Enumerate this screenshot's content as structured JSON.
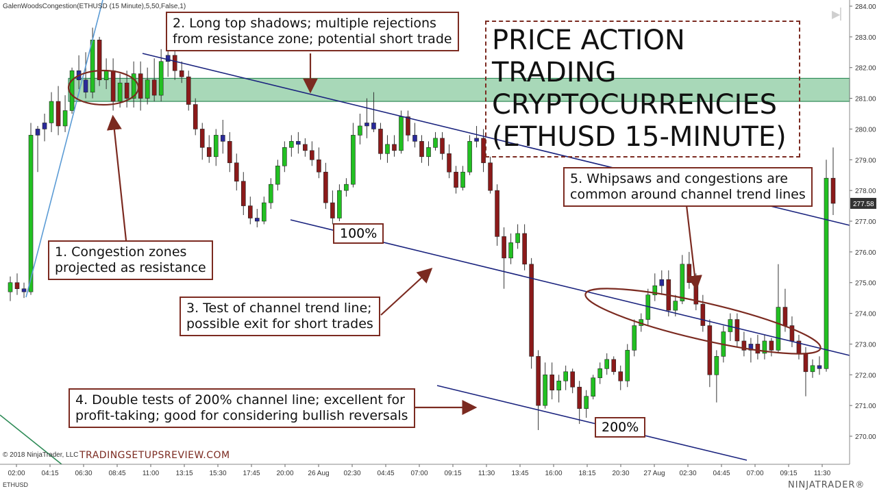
{
  "chart_header": "GalenWoodsCongestion(ETHUSD (15 Minute),5,50,False,1)",
  "copyright": "© 2018 NinjaTrader, LLC",
  "instrument": "ETHUSD",
  "website": "TRADINGSETUPSREVIEW.COM",
  "logo": "NINJATRADER®",
  "title_lines": [
    "PRICE ACTION TRADING",
    "CRYPTOCURRENCIES",
    "(ETHUSD 15-MINUTE)"
  ],
  "annotations": {
    "a1": [
      "1. Congestion zones",
      "projected as resistance"
    ],
    "a2": [
      "2. Long top shadows; multiple rejections",
      "from resistance zone; potential short trade"
    ],
    "a3": [
      "3. Test of channel trend line;",
      "possible exit for short trades"
    ],
    "a4": [
      "4. Double tests of 200% channel line; excellent for",
      "profit-taking; good for considering bullish reversals"
    ],
    "a5": [
      "5. Whipsaws and congestions are",
      "common around channel trend lines"
    ]
  },
  "pct_labels": {
    "p100": "100%",
    "p200": "200%"
  },
  "colors": {
    "bull": "#22c022",
    "bear": "#8b1a1a",
    "congestion": "#2a2a9a",
    "zone": "#a8d8b8",
    "zone_edge": "#2e8b57",
    "channel": "#1a237e",
    "annot": "#7b2a20"
  },
  "chart_data": {
    "type": "candlestick",
    "title": "",
    "y_ticks": [
      284.0,
      283.0,
      282.0,
      281.0,
      280.0,
      279.0,
      278.0,
      277.0,
      276.0,
      275.0,
      274.0,
      273.0,
      272.0,
      271.0,
      270.0
    ],
    "ylim": [
      269.4,
      284.2
    ],
    "x_ticks": [
      "02:00",
      "04:15",
      "06:30",
      "08:45",
      "11:00",
      "13:15",
      "15:30",
      "17:45",
      "20:00",
      "26 Aug",
      "02:30",
      "04:45",
      "07:00",
      "09:15",
      "11:30",
      "13:45",
      "16:00",
      "18:15",
      "20:30",
      "27 Aug",
      "02:30",
      "04:45",
      "07:00",
      "09:15",
      "11:30"
    ],
    "last_price": "277.58",
    "resistance_zone": [
      280.9,
      281.65
    ],
    "series": [
      {
        "values": [
          [
            274.7,
            275.2,
            274.4,
            275.0
          ],
          [
            275.0,
            275.3,
            274.6,
            274.8
          ],
          [
            274.8,
            275.0,
            274.5,
            274.7
          ],
          [
            274.7,
            280.2,
            274.6,
            279.8
          ],
          [
            279.8,
            280.1,
            278.6,
            280.0
          ],
          [
            280.0,
            280.5,
            279.6,
            280.2
          ],
          [
            280.2,
            281.2,
            279.9,
            280.9
          ],
          [
            280.9,
            281.4,
            279.8,
            280.1
          ],
          [
            280.1,
            281.1,
            279.9,
            280.6
          ],
          [
            280.6,
            282.0,
            280.5,
            281.9
          ],
          [
            281.9,
            282.4,
            281.3,
            281.6
          ],
          [
            281.6,
            282.5,
            281.0,
            281.2
          ],
          [
            281.2,
            283.3,
            281.0,
            282.9
          ],
          [
            282.9,
            283.0,
            281.4,
            281.6
          ],
          [
            281.6,
            282.3,
            281.3,
            281.9
          ],
          [
            281.9,
            282.3,
            280.6,
            280.9
          ],
          [
            280.9,
            281.8,
            280.7,
            281.5
          ],
          [
            281.5,
            281.9,
            280.7,
            281.0
          ],
          [
            281.0,
            282.2,
            280.7,
            281.8
          ],
          [
            281.8,
            282.2,
            280.6,
            281.0
          ],
          [
            281.0,
            282.0,
            280.8,
            281.6
          ],
          [
            281.6,
            282.3,
            280.9,
            281.1
          ],
          [
            281.1,
            282.6,
            280.9,
            282.2
          ],
          [
            282.2,
            282.6,
            281.7,
            282.4
          ],
          [
            282.4,
            282.7,
            281.6,
            281.9
          ],
          [
            281.9,
            282.2,
            281.5,
            281.7
          ],
          [
            281.7,
            281.9,
            280.6,
            280.8
          ],
          [
            280.8,
            281.0,
            279.8,
            280.0
          ],
          [
            280.0,
            280.2,
            279.0,
            279.4
          ],
          [
            279.4,
            279.8,
            278.9,
            279.1
          ],
          [
            279.1,
            280.0,
            278.8,
            279.8
          ],
          [
            279.8,
            280.3,
            279.2,
            279.6
          ],
          [
            279.6,
            279.9,
            278.6,
            278.9
          ],
          [
            278.9,
            279.2,
            278.0,
            278.3
          ],
          [
            278.3,
            278.6,
            277.2,
            277.5
          ],
          [
            277.5,
            277.8,
            276.9,
            277.1
          ],
          [
            277.1,
            277.4,
            276.8,
            277.0
          ],
          [
            277.0,
            277.8,
            276.9,
            277.6
          ],
          [
            277.6,
            278.4,
            277.4,
            278.2
          ],
          [
            278.2,
            279.0,
            278.0,
            278.8
          ],
          [
            278.8,
            279.6,
            278.6,
            279.4
          ],
          [
            279.4,
            279.8,
            279.1,
            279.6
          ],
          [
            279.6,
            279.9,
            279.2,
            279.5
          ],
          [
            279.5,
            279.7,
            279.1,
            279.3
          ],
          [
            279.3,
            279.6,
            278.8,
            279.0
          ],
          [
            279.0,
            279.4,
            278.4,
            278.6
          ],
          [
            278.6,
            278.9,
            277.4,
            277.6
          ],
          [
            277.6,
            278.0,
            276.9,
            277.1
          ],
          [
            277.1,
            278.2,
            277.0,
            278.0
          ],
          [
            278.0,
            278.4,
            277.8,
            278.2
          ],
          [
            278.2,
            280.2,
            278.1,
            279.8
          ],
          [
            279.8,
            280.5,
            279.5,
            280.1
          ],
          [
            280.1,
            281.0,
            279.7,
            280.2
          ],
          [
            280.2,
            281.2,
            279.9,
            280.0
          ],
          [
            280.0,
            280.2,
            279.0,
            279.2
          ],
          [
            279.2,
            279.8,
            278.9,
            279.5
          ],
          [
            279.5,
            279.8,
            279.1,
            279.3
          ],
          [
            279.3,
            280.6,
            279.2,
            280.4
          ],
          [
            280.4,
            280.6,
            279.6,
            279.8
          ],
          [
            279.8,
            280.2,
            279.4,
            279.6
          ],
          [
            279.6,
            279.8,
            278.9,
            279.1
          ],
          [
            279.1,
            279.6,
            278.8,
            279.4
          ],
          [
            279.4,
            279.9,
            279.3,
            279.7
          ],
          [
            279.7,
            279.9,
            279.0,
            279.2
          ],
          [
            279.2,
            279.5,
            278.4,
            278.6
          ],
          [
            278.6,
            278.8,
            277.9,
            278.1
          ],
          [
            278.1,
            278.8,
            278.0,
            278.6
          ],
          [
            278.6,
            279.8,
            278.5,
            279.6
          ],
          [
            279.6,
            280.1,
            279.4,
            279.7
          ],
          [
            279.7,
            280.0,
            278.6,
            278.9
          ],
          [
            278.9,
            279.1,
            277.9,
            278.0
          ],
          [
            278.0,
            278.2,
            276.2,
            276.5
          ],
          [
            276.5,
            276.8,
            274.8,
            275.8
          ],
          [
            275.8,
            276.6,
            275.6,
            276.3
          ],
          [
            276.3,
            276.9,
            276.1,
            276.6
          ],
          [
            276.6,
            276.9,
            275.4,
            275.6
          ],
          [
            275.6,
            275.8,
            272.2,
            272.6
          ],
          [
            272.6,
            272.8,
            270.2,
            271.0
          ],
          [
            271.0,
            272.4,
            270.9,
            272.0
          ],
          [
            272.0,
            272.4,
            271.2,
            271.5
          ],
          [
            271.5,
            272.0,
            271.1,
            271.8
          ],
          [
            271.8,
            272.3,
            271.5,
            272.1
          ],
          [
            272.1,
            272.2,
            271.4,
            271.6
          ],
          [
            271.6,
            271.8,
            270.4,
            270.9
          ],
          [
            270.9,
            271.5,
            270.6,
            271.3
          ],
          [
            271.3,
            272.0,
            271.2,
            271.9
          ],
          [
            271.9,
            272.4,
            271.7,
            272.2
          ],
          [
            272.2,
            272.7,
            272.0,
            272.5
          ],
          [
            272.5,
            272.6,
            272.0,
            272.1
          ],
          [
            272.1,
            272.3,
            271.5,
            271.8
          ],
          [
            271.8,
            273.0,
            271.6,
            272.8
          ],
          [
            272.8,
            273.8,
            272.6,
            273.6
          ],
          [
            273.6,
            274.0,
            273.4,
            273.8
          ],
          [
            273.8,
            274.8,
            273.6,
            274.6
          ],
          [
            274.6,
            275.3,
            274.4,
            274.9
          ],
          [
            274.9,
            275.4,
            274.6,
            275.1
          ],
          [
            275.1,
            275.4,
            273.9,
            274.1
          ],
          [
            274.1,
            274.6,
            273.9,
            274.4
          ],
          [
            274.4,
            275.9,
            274.3,
            275.6
          ],
          [
            275.6,
            276.0,
            274.8,
            275.0
          ],
          [
            275.0,
            275.3,
            274.1,
            274.3
          ],
          [
            274.3,
            274.6,
            273.4,
            273.6
          ],
          [
            273.6,
            273.8,
            271.6,
            272.0
          ],
          [
            272.0,
            272.8,
            271.1,
            272.6
          ],
          [
            272.6,
            273.6,
            272.4,
            273.4
          ],
          [
            273.4,
            274.0,
            273.1,
            273.8
          ],
          [
            273.8,
            274.0,
            272.9,
            273.1
          ],
          [
            273.1,
            273.4,
            272.6,
            272.8
          ],
          [
            272.8,
            273.2,
            272.4,
            273.0
          ],
          [
            273.0,
            273.3,
            272.5,
            272.7
          ],
          [
            272.7,
            273.3,
            272.5,
            273.1
          ],
          [
            273.1,
            273.2,
            272.6,
            272.8
          ],
          [
            272.8,
            275.6,
            272.7,
            274.2
          ],
          [
            274.2,
            274.8,
            273.4,
            273.6
          ],
          [
            273.6,
            273.9,
            272.9,
            273.1
          ],
          [
            273.1,
            273.3,
            272.5,
            272.7
          ],
          [
            272.7,
            272.9,
            271.3,
            272.1
          ],
          [
            272.1,
            272.5,
            271.9,
            272.3
          ],
          [
            272.3,
            272.6,
            272.0,
            272.2
          ],
          [
            272.2,
            279.0,
            272.1,
            278.4
          ],
          [
            278.4,
            279.4,
            277.2,
            277.58
          ]
        ]
      }
    ]
  }
}
